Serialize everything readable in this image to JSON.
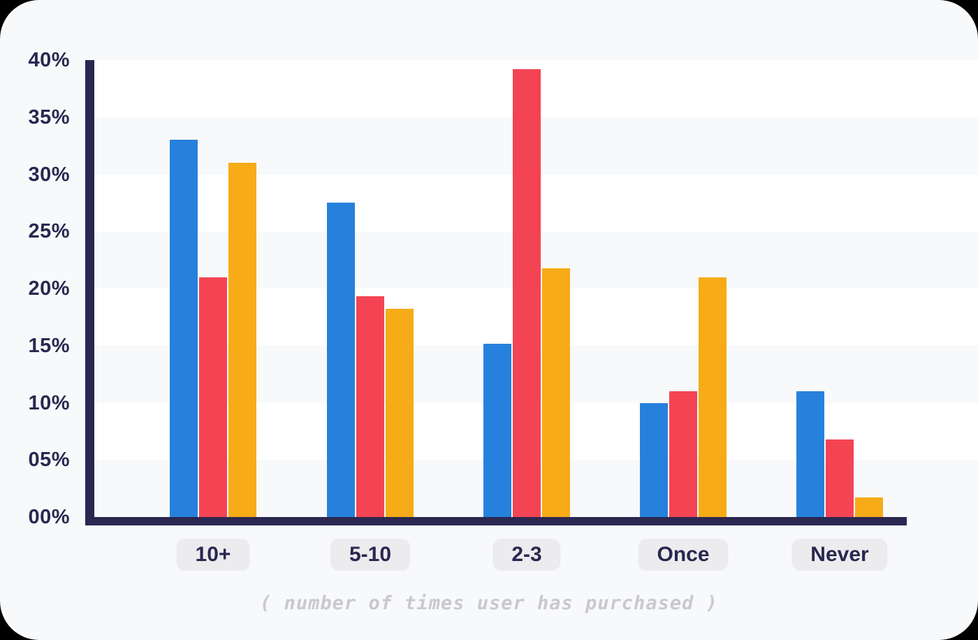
{
  "page": {
    "background_color": "#f8f9fa",
    "outside_color": "#000000",
    "band_color": "#ffffff",
    "axis_color": "#2a2750"
  },
  "y_axis": {
    "tick_labels": [
      "40%",
      "35%",
      "30%",
      "25%",
      "20%",
      "15%",
      "10%",
      "05%",
      "00%"
    ],
    "label_color": "#2a2750"
  },
  "x_axis": {
    "category_labels": [
      "10+",
      "5-10",
      "2-3",
      "Once",
      "Never"
    ],
    "pill_background": "#ececef",
    "label_color": "#2a2750",
    "caption": "( number of times user has purchased )",
    "caption_color": "#c9c9cd"
  },
  "chart_data": {
    "type": "bar",
    "title": "",
    "xlabel": "( number of times user has purchased )",
    "ylabel": "",
    "categories": [
      "10+",
      "5-10",
      "2-3",
      "Once",
      "Never"
    ],
    "series": [
      {
        "name": "blue",
        "color": "#2681dc",
        "values": [
          33,
          27.5,
          15.2,
          10,
          11
        ]
      },
      {
        "name": "red",
        "color": "#f44453",
        "values": [
          21,
          19.3,
          39.2,
          11,
          6.8
        ]
      },
      {
        "name": "yellow",
        "color": "#f7ab17",
        "values": [
          31,
          18.2,
          21.8,
          21,
          1.7
        ]
      }
    ],
    "ylim": [
      0,
      40
    ],
    "y_tick_step": 5,
    "grid": "alternating-horizontal-bands",
    "legend": "none"
  }
}
